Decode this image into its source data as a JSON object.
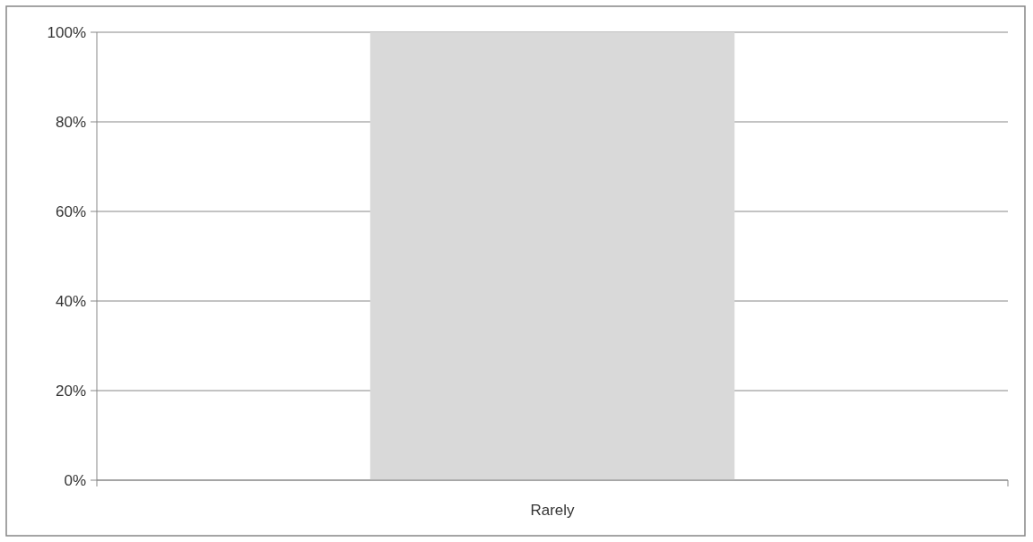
{
  "chart_data": {
    "type": "bar",
    "categories": [
      "Rarely"
    ],
    "values": [
      100
    ],
    "color": "#d9d9d9",
    "ylim": [
      0,
      100
    ],
    "yticks": [
      {
        "value": 0,
        "label": "0%"
      },
      {
        "value": 20,
        "label": "20%"
      },
      {
        "value": 40,
        "label": "40%"
      },
      {
        "value": 60,
        "label": "60%"
      },
      {
        "value": 80,
        "label": "80%"
      },
      {
        "value": 100,
        "label": "100%"
      }
    ],
    "grid": "y"
  }
}
